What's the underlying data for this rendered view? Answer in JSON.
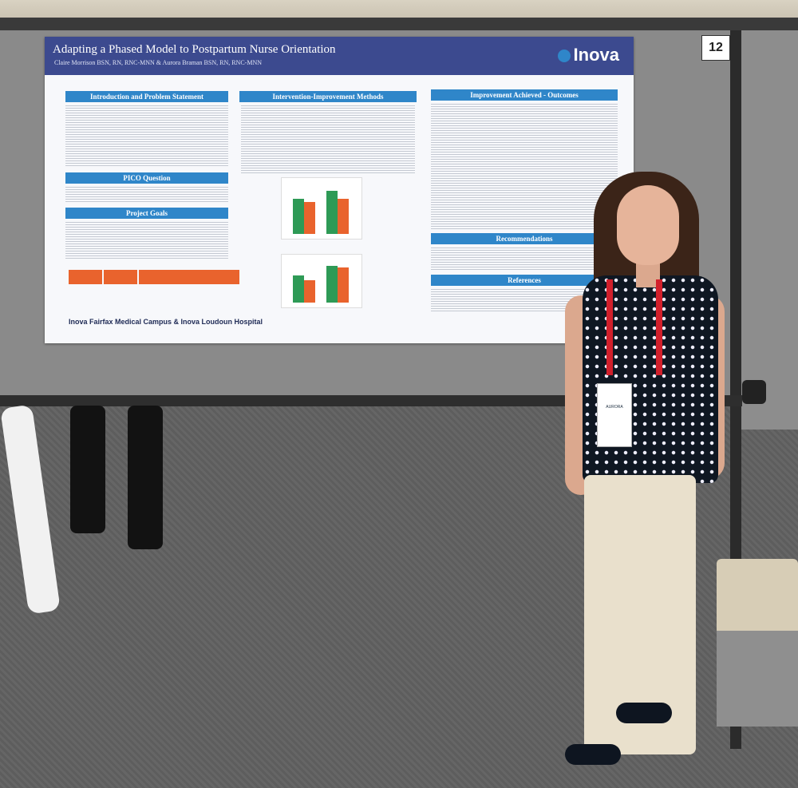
{
  "booth_number": "12",
  "poster": {
    "title": "Adapting a Phased Model to Postpartum Nurse Orientation",
    "authors": "Claire Morrison BSN, RN, RNC-MNN & Aurora Braman BSN, RN, RNC-MNN",
    "logo": "Inova",
    "sections": {
      "intro": "Introduction and Problem Statement",
      "pico": "PICO Question",
      "goals": "Project Goals",
      "methods": "Intervention-Improvement Methods",
      "outcomes": "Improvement Achieved - Outcomes",
      "recommendations": "Recommendations",
      "references": "References"
    },
    "footer": "Inova Fairfax Medical Campus & Inova Loudoun Hospital"
  },
  "badge": {
    "name": "AURORA"
  },
  "colors": {
    "poster_header": "#3c4a8f",
    "section_bar": "#2f86c9",
    "chart_green": "#2e9a56",
    "chart_orange": "#e9632d",
    "lanyard": "#d21f2b"
  }
}
